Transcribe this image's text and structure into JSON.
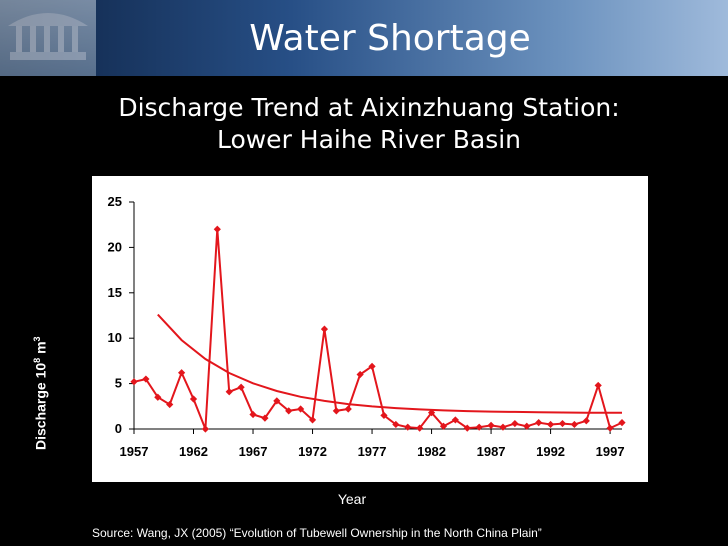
{
  "slide": {
    "title": "Water Shortage",
    "subtitle_line1": "Discharge Trend at Aixinzhuang Station:",
    "subtitle_line2": "Lower  Haihe River Basin",
    "source": "Source:  Wang, JX (2005) “Evolution of Tubewell Ownership in the North China Plain”"
  },
  "chart_data": {
    "type": "line",
    "xlabel": "Year",
    "ylabel_base": "Discharge 10",
    "ylabel_exp": "8",
    "ylabel_unit": " m",
    "ylabel_unit_exp": "3",
    "ylim": [
      0,
      25
    ],
    "xlim": [
      1957,
      1998
    ],
    "yticks": [
      0,
      5,
      10,
      15,
      20,
      25
    ],
    "xticks": [
      1957,
      1962,
      1967,
      1972,
      1977,
      1982,
      1987,
      1992,
      1997
    ],
    "grid": false,
    "series": [
      {
        "type": "line-markers",
        "color": "#e3161c",
        "x": [
          1957,
          1958,
          1959,
          1960,
          1961,
          1962,
          1963,
          1964,
          1965,
          1966,
          1967,
          1968,
          1969,
          1970,
          1971,
          1972,
          1973,
          1974,
          1975,
          1976,
          1977,
          1978,
          1979,
          1980,
          1981,
          1982,
          1983,
          1984,
          1985,
          1986,
          1987,
          1988,
          1989,
          1990,
          1991,
          1992,
          1993,
          1994,
          1995,
          1996,
          1997,
          1998
        ],
        "values": [
          5.2,
          5.5,
          3.5,
          2.7,
          6.2,
          3.3,
          0,
          22,
          4.1,
          4.6,
          1.6,
          1.2,
          3.1,
          2.0,
          2.2,
          1.0,
          11,
          2.0,
          2.2,
          6.0,
          6.9,
          1.5,
          0.5,
          0.2,
          0.1,
          1.8,
          0.3,
          1.0,
          0.1,
          0.2,
          0.4,
          0.2,
          0.6,
          0.3,
          0.7,
          0.5,
          0.6,
          0.5,
          0.9,
          4.8,
          0.1,
          0.7
        ]
      },
      {
        "type": "trend",
        "color": "#e3161c",
        "x": [
          1959,
          1961,
          1963,
          1965,
          1967,
          1969,
          1971,
          1973,
          1975,
          1977,
          1979,
          1981,
          1983,
          1985,
          1987,
          1989,
          1991,
          1993,
          1995,
          1998
        ],
        "values": [
          12.6,
          9.79,
          7.71,
          6.17,
          5.03,
          4.18,
          3.55,
          3.09,
          2.74,
          2.49,
          2.3,
          2.16,
          2.05,
          1.97,
          1.92,
          1.88,
          1.84,
          1.82,
          1.8,
          1.79
        ]
      }
    ]
  }
}
